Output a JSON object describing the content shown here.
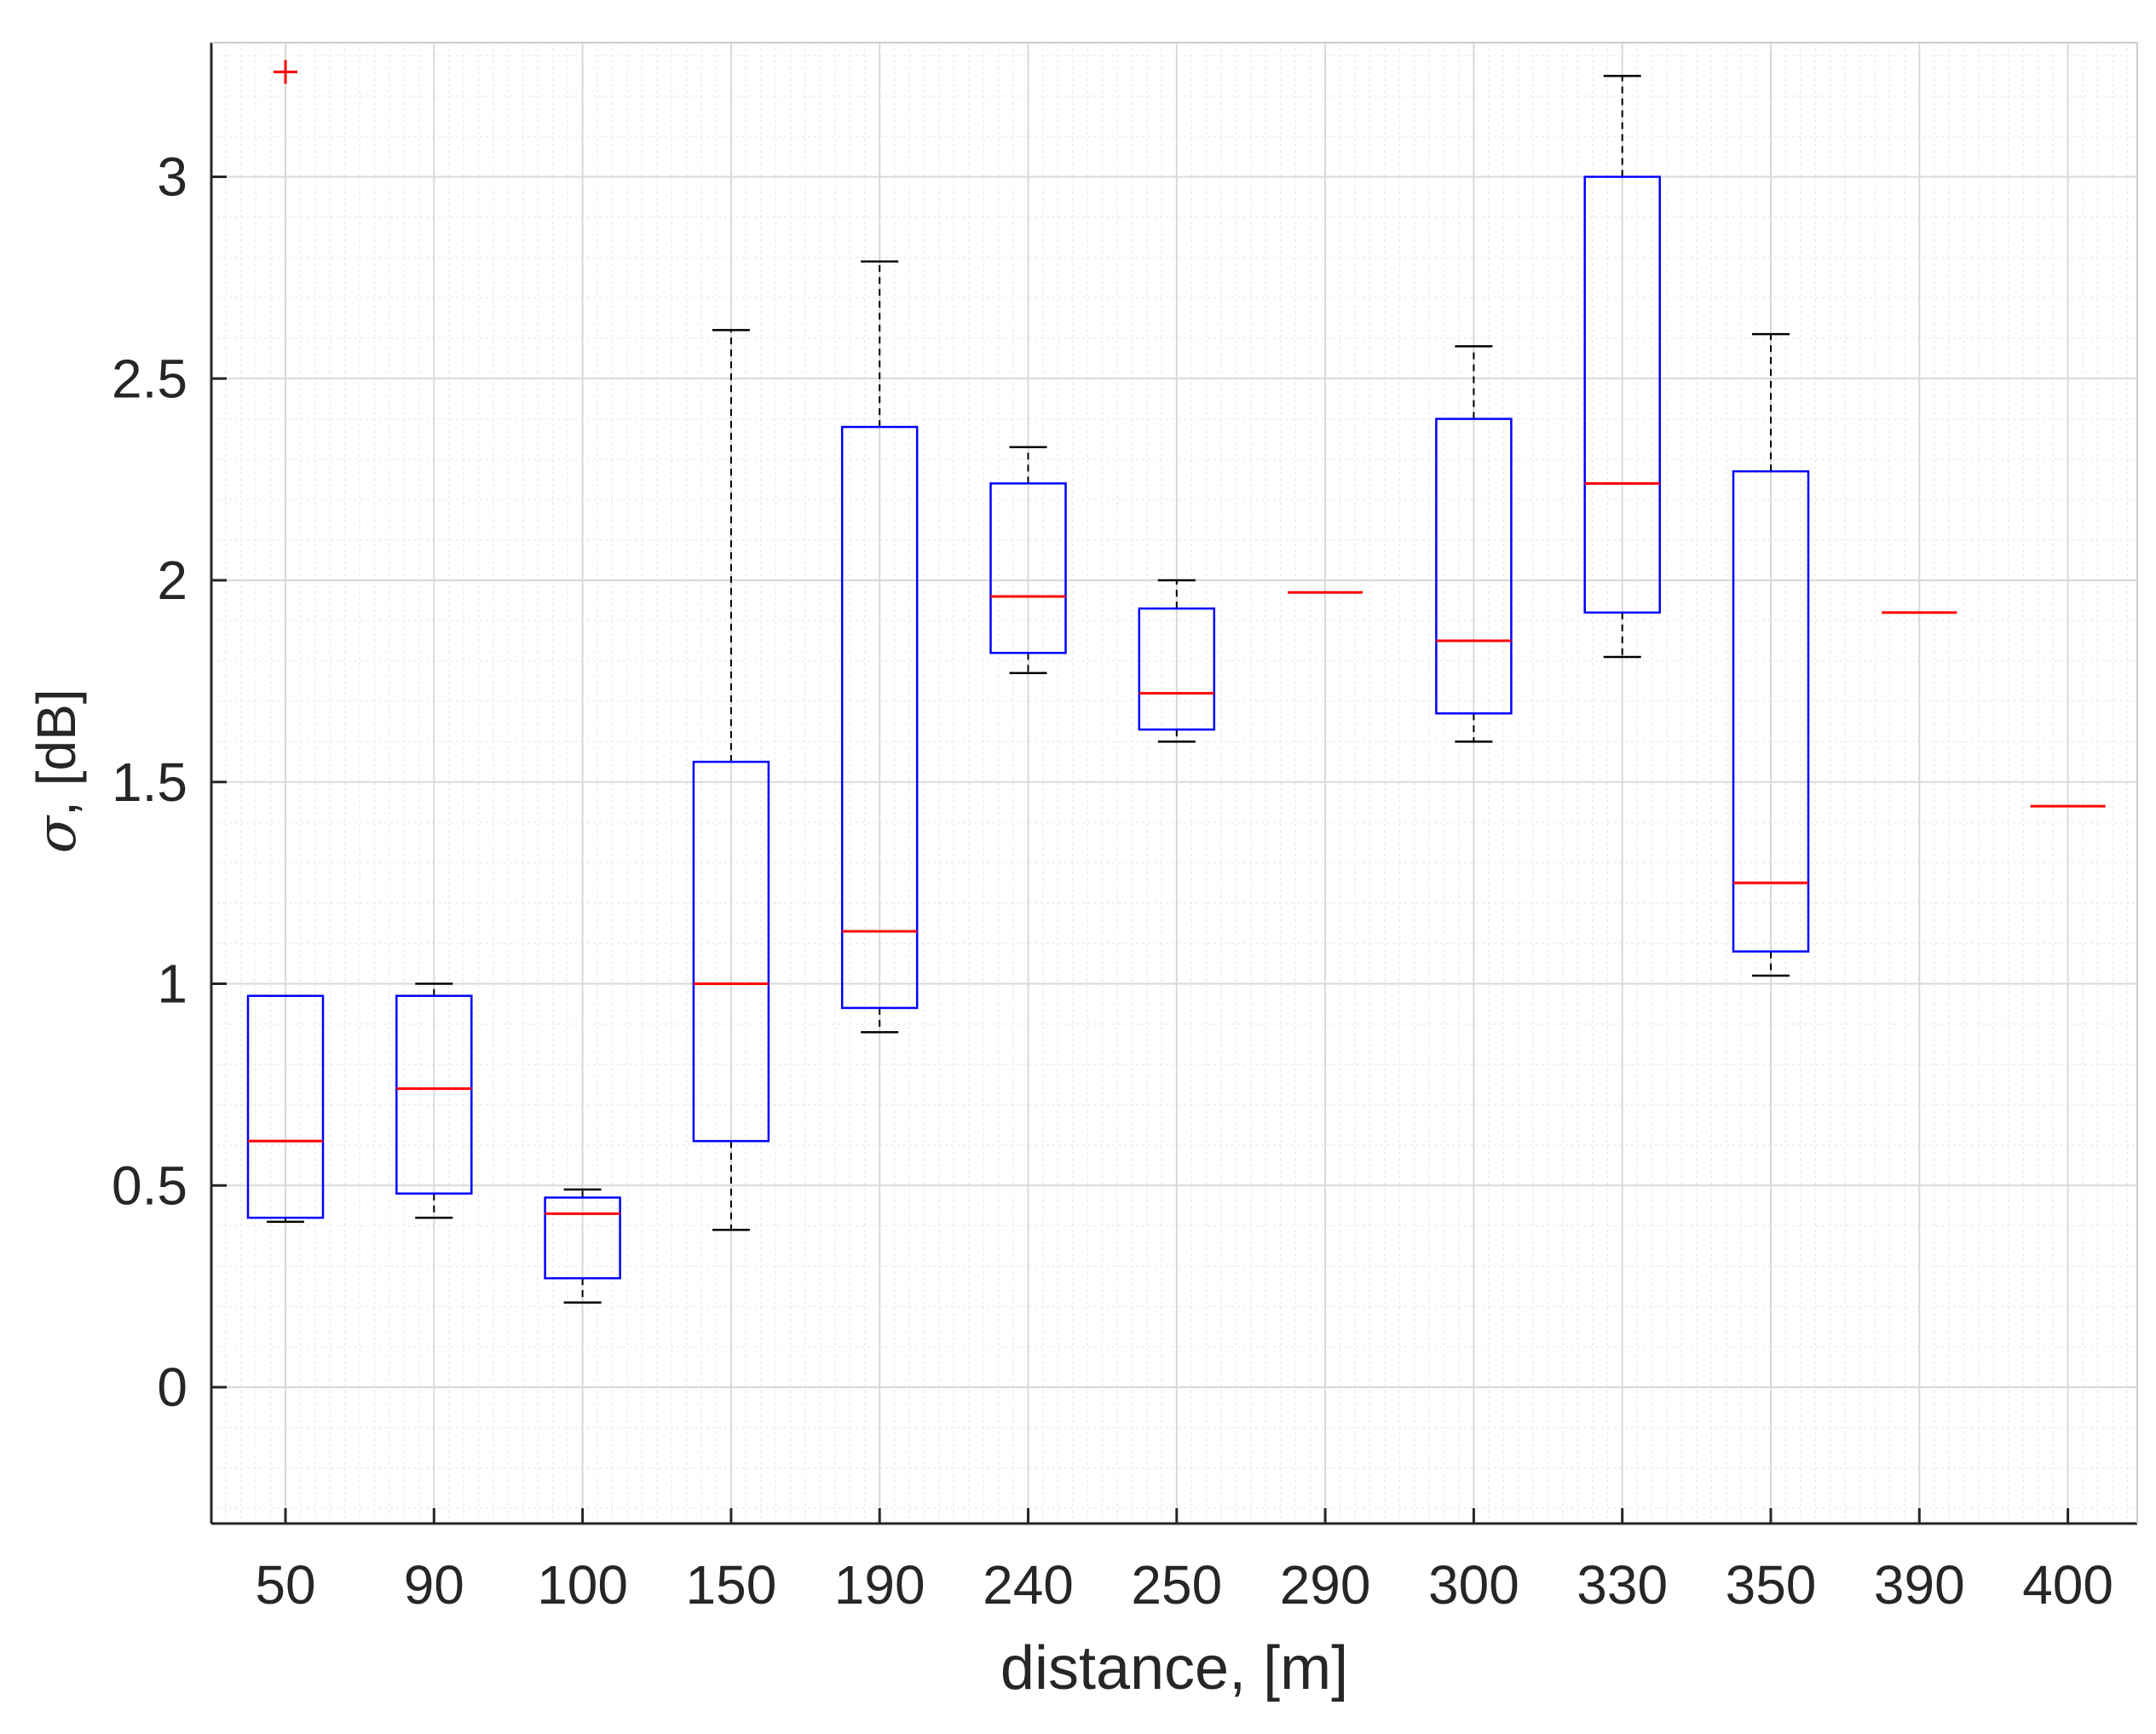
{
  "chart_data": {
    "type": "box",
    "xlabel": "distance, [m]",
    "ylabel_symbol": "σ",
    "ylabel_rest": ", [dB]",
    "ylim": [
      -0.33,
      3.32
    ],
    "yticks": [
      0,
      0.5,
      1,
      1.5,
      2,
      2.5,
      3
    ],
    "ytick_labels": [
      "0",
      "0.5",
      "1",
      "1.5",
      "2",
      "2.5",
      "3"
    ],
    "categories": [
      "50",
      "90",
      "100",
      "150",
      "190",
      "240",
      "250",
      "290",
      "300",
      "330",
      "350",
      "390",
      "400"
    ],
    "grid": true,
    "minor_grid": true,
    "colors": {
      "box": "#0000ff",
      "median": "#ff0000",
      "whisker": "#000000",
      "outlier": "#ff0000",
      "grid": "#d9d9d9",
      "axis": "#262626"
    },
    "boxes": [
      {
        "category": "50",
        "whisker_low": 0.41,
        "q1": 0.42,
        "median": 0.61,
        "q3": 0.97,
        "whisker_high": 0.97,
        "outliers": [
          3.26
        ]
      },
      {
        "category": "90",
        "whisker_low": 0.42,
        "q1": 0.48,
        "median": 0.74,
        "q3": 0.97,
        "whisker_high": 1.0,
        "outliers": []
      },
      {
        "category": "100",
        "whisker_low": 0.21,
        "q1": 0.27,
        "median": 0.43,
        "q3": 0.47,
        "whisker_high": 0.49,
        "outliers": []
      },
      {
        "category": "150",
        "whisker_low": 0.39,
        "q1": 0.61,
        "median": 1.0,
        "q3": 1.55,
        "whisker_high": 2.62,
        "outliers": []
      },
      {
        "category": "190",
        "whisker_low": 0.88,
        "q1": 0.94,
        "median": 1.13,
        "q3": 2.38,
        "whisker_high": 2.79,
        "outliers": []
      },
      {
        "category": "240",
        "whisker_low": 1.77,
        "q1": 1.82,
        "median": 1.96,
        "q3": 2.24,
        "whisker_high": 2.33,
        "outliers": []
      },
      {
        "category": "250",
        "whisker_low": 1.6,
        "q1": 1.63,
        "median": 1.72,
        "q3": 1.93,
        "whisker_high": 2.0,
        "outliers": []
      },
      {
        "category": "290",
        "whisker_low": 1.97,
        "q1": 1.97,
        "median": 1.97,
        "q3": 1.97,
        "whisker_high": 1.97,
        "outliers": []
      },
      {
        "category": "300",
        "whisker_low": 1.6,
        "q1": 1.67,
        "median": 1.85,
        "q3": 2.4,
        "whisker_high": 2.58,
        "outliers": []
      },
      {
        "category": "330",
        "whisker_low": 1.81,
        "q1": 1.92,
        "median": 2.24,
        "q3": 3.0,
        "whisker_high": 3.25,
        "outliers": []
      },
      {
        "category": "350",
        "whisker_low": 1.02,
        "q1": 1.08,
        "median": 1.25,
        "q3": 2.27,
        "whisker_high": 2.61,
        "outliers": []
      },
      {
        "category": "390",
        "whisker_low": 1.92,
        "q1": 1.92,
        "median": 1.92,
        "q3": 1.92,
        "whisker_high": 1.92,
        "outliers": []
      },
      {
        "category": "400",
        "whisker_low": 1.44,
        "q1": 1.44,
        "median": 1.44,
        "q3": 1.44,
        "whisker_high": 1.44,
        "outliers": []
      }
    ]
  }
}
